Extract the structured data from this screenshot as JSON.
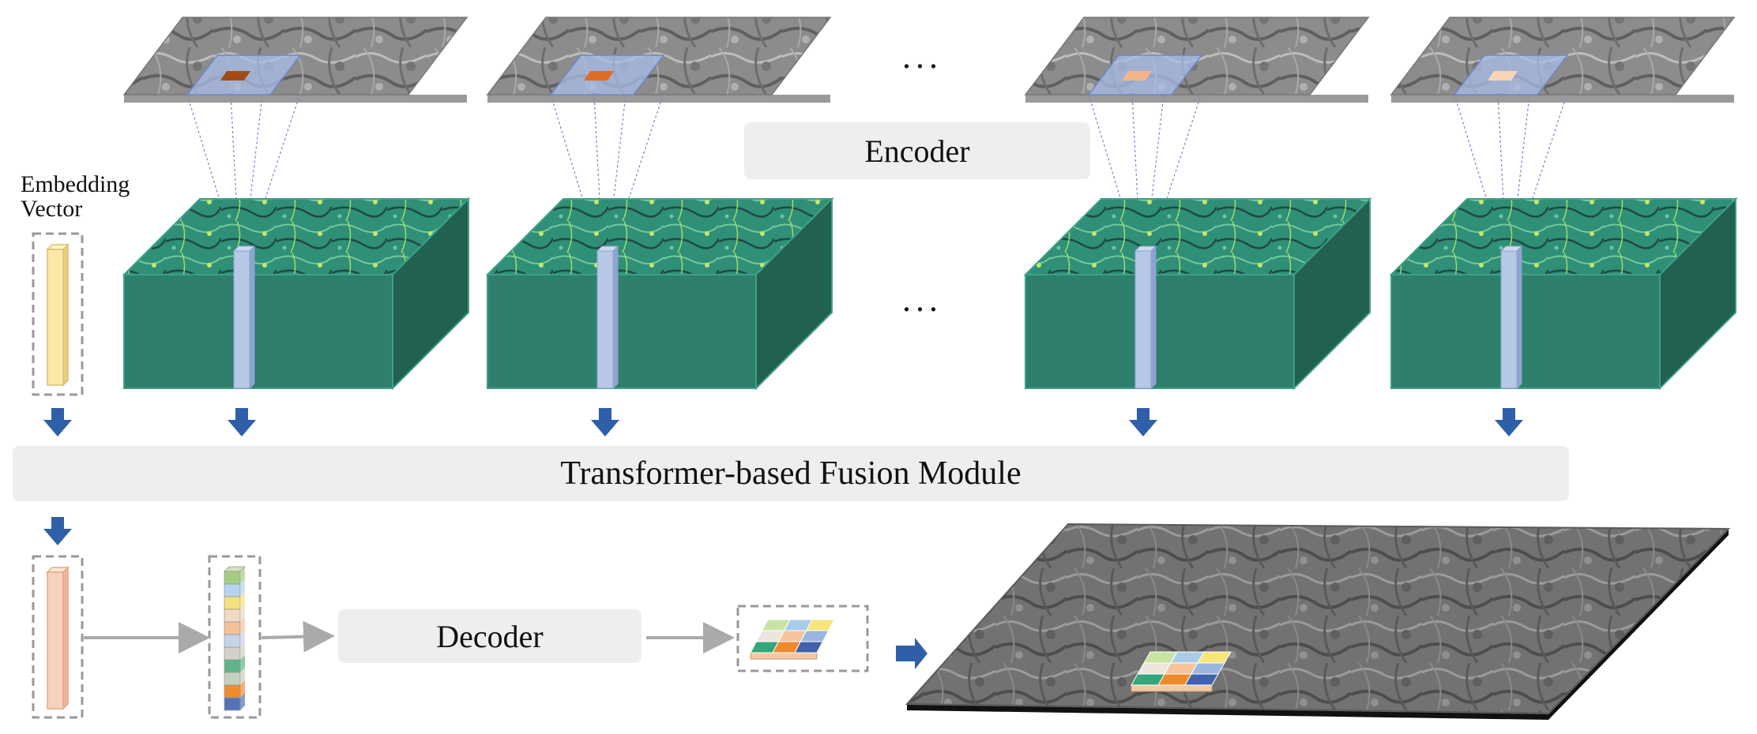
{
  "labels": {
    "encoder": "Encoder",
    "fusion": "Transformer-based Fusion Module",
    "decoder": "Decoder",
    "embedding_line1": "Embedding",
    "embedding_line2": "Vector",
    "ellipsis_top": "...",
    "ellipsis_mid": "..."
  },
  "colors": {
    "volume_top": "#2f8f77",
    "volume_front": "#2e7f6c",
    "volume_side": "#22604f",
    "arrow_blue": "#2f5fa8",
    "embedding_yellow": "#fbe8a6",
    "decoder_input_peach": "#f9d2bd",
    "patch_colors": [
      "#c9e3a4",
      "#a9cde8",
      "#f8e57c",
      "#ede6dc",
      "#f7c49d",
      "#9ab6e0",
      "#33a67a",
      "#ef8a2a",
      "#3e62ad"
    ],
    "token_stack_colors": [
      "#a6cc84",
      "#b8d3ee",
      "#f6e07e",
      "#f0d9c5",
      "#f4c098",
      "#c7d3ea",
      "#d4d0c8",
      "#5fb38b",
      "#c6d0c0",
      "#ee8c2e",
      "#5572b8"
    ]
  },
  "highlight_colors": [
    "#a14c16",
    "#e06b22",
    "#f3b488",
    "#f8d4b6"
  ]
}
